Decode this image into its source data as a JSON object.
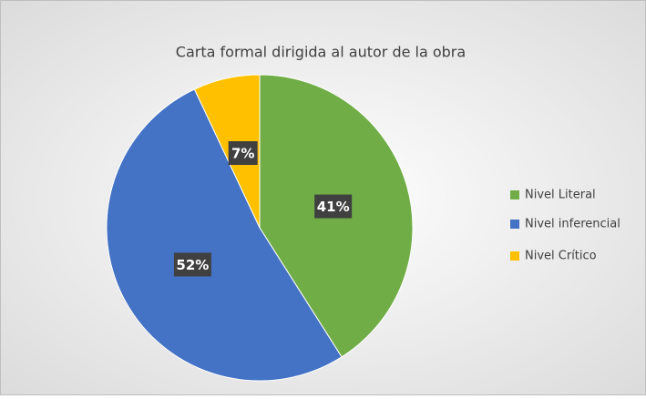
{
  "chart_data": {
    "type": "pie",
    "title": "Carta formal dirigida al autor de la obra",
    "categories": [
      "Nivel Literal",
      "Nivel inferencial",
      "Nivel Crítico"
    ],
    "values": [
      41,
      52,
      7
    ],
    "value_labels": [
      "41%",
      "52%",
      "7%"
    ],
    "colors": [
      "#70ad47",
      "#4472c4",
      "#ffc000"
    ],
    "legend": "right"
  }
}
